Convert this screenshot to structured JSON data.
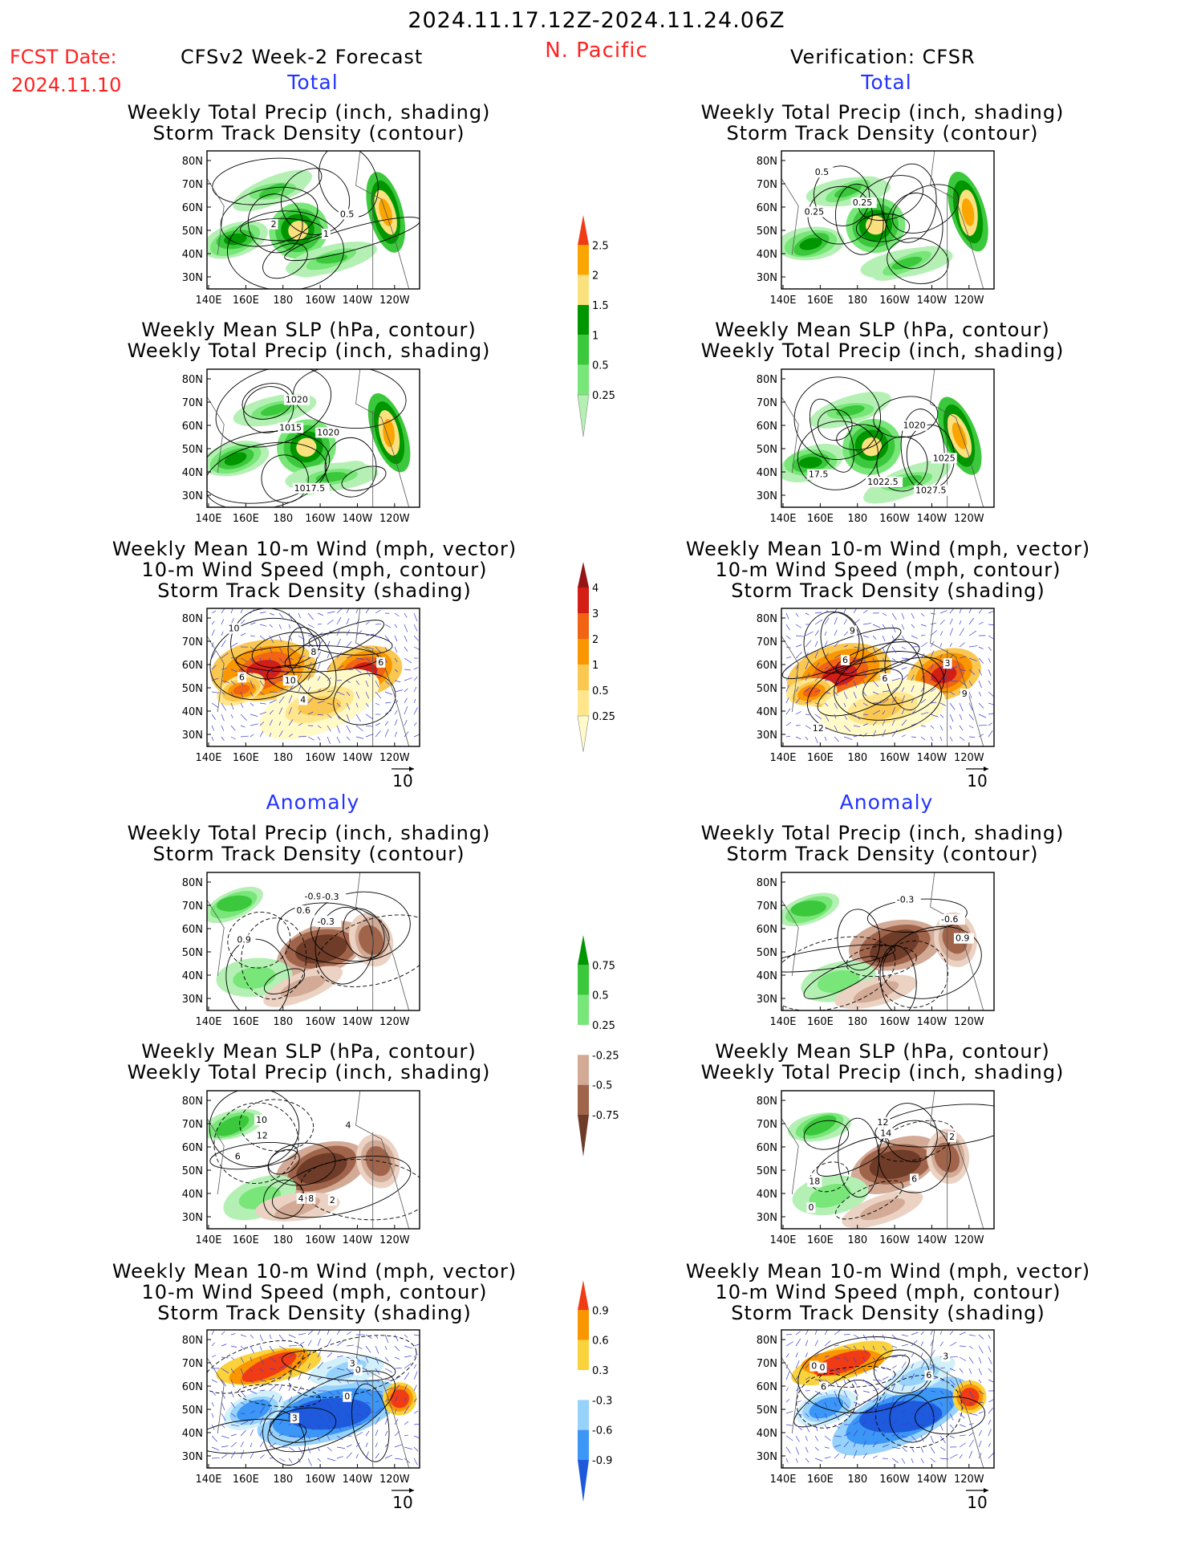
{
  "header": {
    "date_range": "2024.11.17.12Z-2024.11.24.06Z",
    "fcst_label": "FCST Date:",
    "fcst_date": "2024.11.10",
    "left_title": "CFSv2 Week-2 Forecast",
    "region": "N. Pacific",
    "right_title": "Verification: CFSR"
  },
  "sections": {
    "total": "Total",
    "anomaly": "Anomaly"
  },
  "panel_titles": {
    "precip_storm": [
      "Weekly Total Precip (inch, shading)",
      "Storm Track Density (contour)"
    ],
    "slp_precip": [
      "Weekly Mean SLP (hPa, contour)",
      "Weekly Total Precip (inch, shading)"
    ],
    "wind_storm": [
      "Weekly Mean 10-m Wind (mph, vector)",
      "10-m Wind Speed (mph, contour)",
      "Storm Track Density (shading)"
    ]
  },
  "axes": {
    "x_ticks": [
      "140E",
      "160E",
      "180",
      "160W",
      "140W",
      "120W"
    ],
    "y_ticks": [
      "80N",
      "70N",
      "60N",
      "50N",
      "40N",
      "30N"
    ]
  },
  "vector_ref": "10",
  "colors": {
    "precip": [
      "#b4f0b4",
      "#78e678",
      "#3cc83c",
      "#009600",
      "#fae17d",
      "#faa500",
      "#f03c14",
      "#a00000"
    ],
    "density": [
      "#fffac8",
      "#ffe68c",
      "#fac850",
      "#fa9600",
      "#f06414",
      "#d21e14",
      "#961414"
    ],
    "precip_anom": [
      "#6e3c28",
      "#a0644b",
      "#d2aa96",
      "#ebd2c3",
      "#ffffff",
      "#b4f0b4",
      "#78e678",
      "#3cc83c",
      "#009600"
    ],
    "density_anom": [
      "#1e5adc",
      "#3c96f5",
      "#96d2fa",
      "#d2f0fa",
      "#ffffff",
      "#fffa96",
      "#fad23c",
      "#fa9600",
      "#f03c14"
    ]
  },
  "colorbars": [
    {
      "name": "precip-colorbar",
      "labels": [
        "2.5",
        "2",
        "1.5",
        "1",
        "0.5",
        "0.25"
      ]
    },
    {
      "name": "storm-density-colorbar",
      "labels": [
        "4",
        "3",
        "2",
        "1",
        "0.5",
        "0.25"
      ]
    },
    {
      "name": "precip-anomaly-colorbar",
      "labels": [
        "0.75",
        "0.5",
        "0.25",
        "-0.25",
        "-0.5",
        "-0.75"
      ]
    },
    {
      "name": "storm-density-anomaly-colorbar",
      "labels": [
        "0.9",
        "0.6",
        "0.3",
        "-0.3",
        "-0.6",
        "-0.9"
      ]
    }
  ],
  "chart_data": [
    {
      "type": "heatmap",
      "id": "fc-total-precip",
      "contour_labels": [
        "2",
        "1",
        "0.5"
      ]
    },
    {
      "type": "heatmap",
      "id": "fc-total-slp",
      "contour_labels": [
        "1020",
        "1020",
        "1015",
        "1017.5"
      ]
    },
    {
      "type": "heatmap",
      "id": "fc-total-wind",
      "contour_labels": [
        "4",
        "8",
        "6",
        "10",
        "10",
        "6"
      ]
    },
    {
      "type": "heatmap",
      "id": "fc-anom-precip",
      "contour_labels": [
        "-0.6",
        "-0.9",
        "-0.3",
        "-0.3",
        "0.6",
        "0.9"
      ]
    },
    {
      "type": "heatmap",
      "id": "fc-anom-slp",
      "contour_labels": [
        "2",
        "4",
        "12",
        "10",
        "8",
        "6",
        "4"
      ]
    },
    {
      "type": "heatmap",
      "id": "fc-anom-wind",
      "contour_labels": [
        "0",
        "3",
        "0",
        "3"
      ]
    },
    {
      "type": "heatmap",
      "id": "vf-total-precip",
      "contour_labels": [
        "0.25",
        "0.5",
        "0.25"
      ]
    },
    {
      "type": "heatmap",
      "id": "vf-total-slp",
      "contour_labels": [
        "1022.5",
        "17.5",
        "1020",
        "1027.5",
        "1025"
      ]
    },
    {
      "type": "heatmap",
      "id": "vf-total-wind",
      "contour_labels": [
        "6",
        "9",
        "6",
        "9",
        "3",
        "12"
      ]
    },
    {
      "type": "heatmap",
      "id": "vf-anom-precip",
      "contour_labels": [
        "-0.3",
        "0.9",
        "-0.6"
      ]
    },
    {
      "type": "heatmap",
      "id": "vf-anom-slp",
      "contour_labels": [
        "6",
        "2",
        "14",
        "12",
        "18",
        "0"
      ]
    },
    {
      "type": "heatmap",
      "id": "vf-anom-wind",
      "contour_labels": [
        "6",
        "3",
        "0",
        "0",
        "6"
      ]
    }
  ]
}
